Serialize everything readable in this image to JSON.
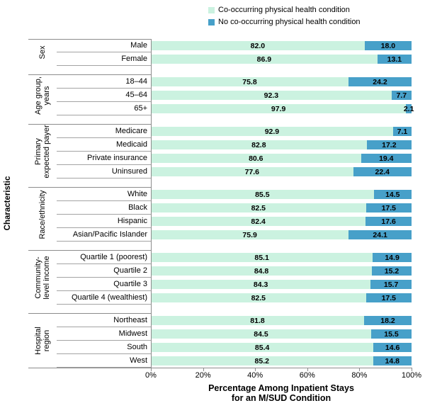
{
  "legend": {
    "items": [
      {
        "key": "co",
        "label": "Co-occurring physical health condition",
        "color": "#cbf2e0"
      },
      {
        "key": "no",
        "label": "No co-occurring physical health condition",
        "color": "#47a0c9"
      }
    ]
  },
  "chart_data": {
    "type": "bar",
    "orientation": "horizontal",
    "stacked": true,
    "value_unit": "%",
    "xlim": [
      0,
      100
    ],
    "grid": false,
    "legend_position": "top",
    "axis_title_y": "Characteristic",
    "axis_title_x": "Percentage Among Inpatient Stays\nfor an M/SUD Condition",
    "x_ticks": [
      "0%",
      "20%",
      "40%",
      "60%",
      "80%",
      "100%"
    ],
    "series": [
      {
        "name": "Co-occurring physical health condition",
        "color": "#cbf2e0"
      },
      {
        "name": "No co-occurring physical health condition",
        "color": "#47a0c9"
      }
    ],
    "groups": [
      {
        "label": "Sex",
        "rows": [
          {
            "category": "Male",
            "co": 82.0,
            "no": 18.0
          },
          {
            "category": "Female",
            "co": 86.9,
            "no": 13.1
          }
        ]
      },
      {
        "label": "Age group,\nyears",
        "rows": [
          {
            "category": "18–44",
            "co": 75.8,
            "no": 24.2
          },
          {
            "category": "45–64",
            "co": 92.3,
            "no": 7.7
          },
          {
            "category": "65+",
            "co": 97.9,
            "no": 2.1
          }
        ]
      },
      {
        "label": "Primary\nexpected payer",
        "rows": [
          {
            "category": "Medicare",
            "co": 92.9,
            "no": 7.1
          },
          {
            "category": "Medicaid",
            "co": 82.8,
            "no": 17.2
          },
          {
            "category": "Private insurance",
            "co": 80.6,
            "no": 19.4
          },
          {
            "category": "Uninsured",
            "co": 77.6,
            "no": 22.4
          }
        ]
      },
      {
        "label": "Race/ethnicity",
        "rows": [
          {
            "category": "White",
            "co": 85.5,
            "no": 14.5
          },
          {
            "category": "Black",
            "co": 82.5,
            "no": 17.5
          },
          {
            "category": "Hispanic",
            "co": 82.4,
            "no": 17.6
          },
          {
            "category": "Asian/Pacific Islander",
            "co": 75.9,
            "no": 24.1
          }
        ]
      },
      {
        "label": "Community-\nlevel income",
        "rows": [
          {
            "category": "Quartile 1 (poorest)",
            "co": 85.1,
            "no": 14.9
          },
          {
            "category": "Quartile 2",
            "co": 84.8,
            "no": 15.2
          },
          {
            "category": "Quartile 3",
            "co": 84.3,
            "no": 15.7
          },
          {
            "category": "Quartile 4 (wealthiest)",
            "co": 82.5,
            "no": 17.5
          }
        ]
      },
      {
        "label": "Hospital\nregion",
        "rows": [
          {
            "category": "Northeast",
            "co": 81.8,
            "no": 18.2
          },
          {
            "category": "Midwest",
            "co": 84.5,
            "no": 15.5
          },
          {
            "category": "South",
            "co": 85.4,
            "no": 14.6
          },
          {
            "category": "West",
            "co": 85.2,
            "no": 14.8
          }
        ]
      }
    ]
  }
}
